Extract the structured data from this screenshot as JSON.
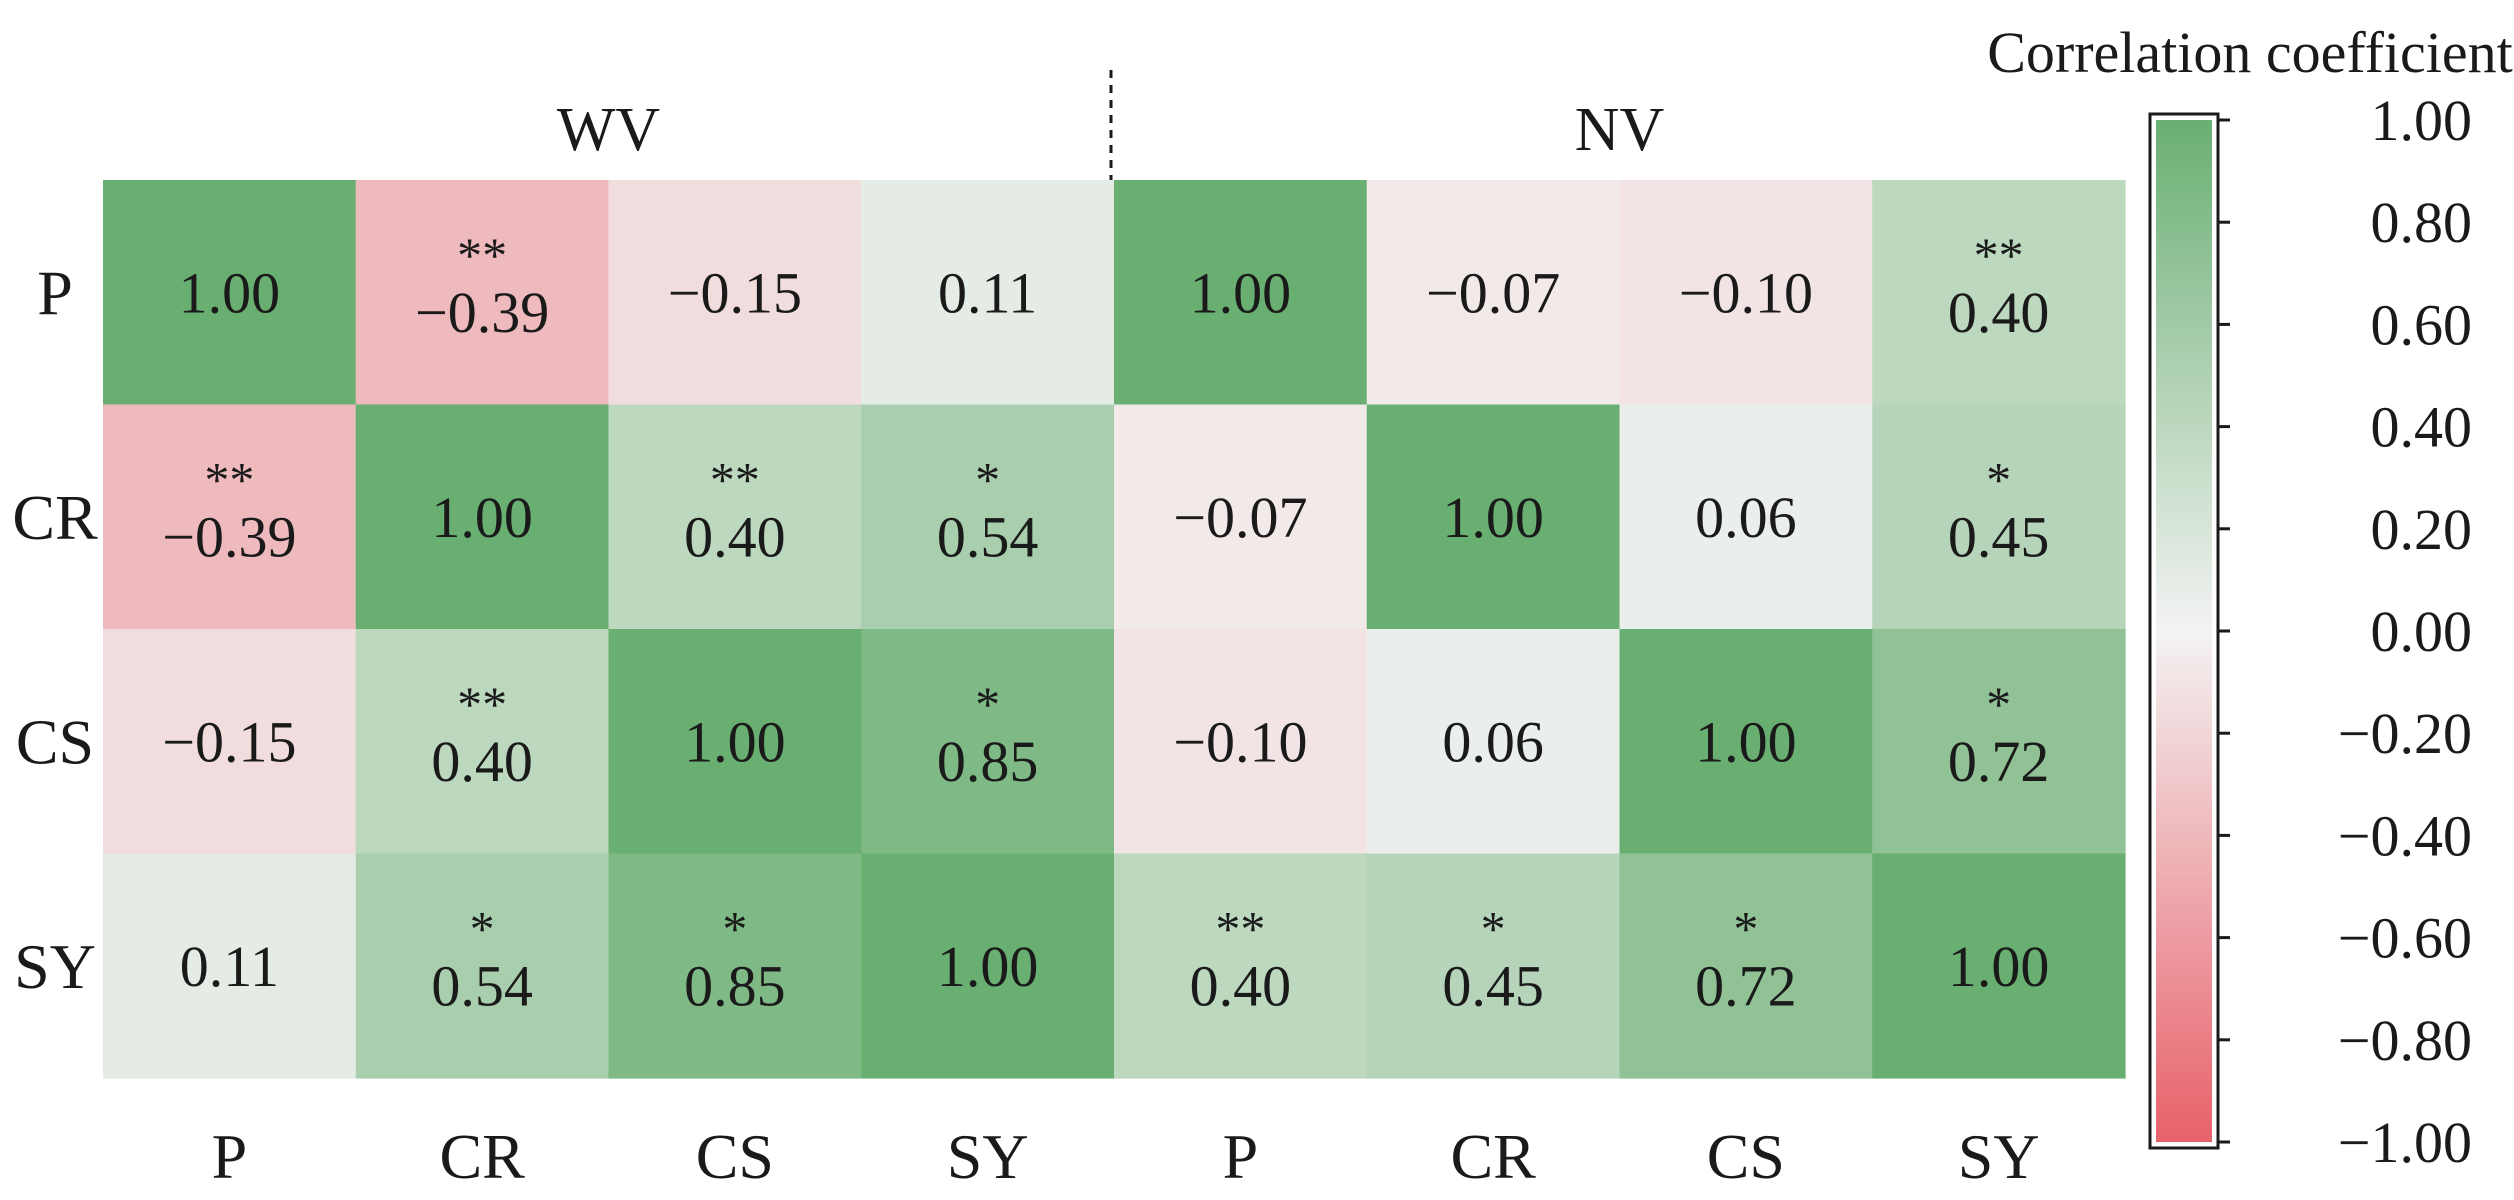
{
  "chart_data": {
    "type": "heatmap",
    "title": "",
    "groups": [
      "WV",
      "NV"
    ],
    "variables": [
      "P",
      "CR",
      "CS",
      "SY"
    ],
    "x_tick_labels": [
      "P",
      "CR",
      "CS",
      "SY",
      "P",
      "CR",
      "CS",
      "SY"
    ],
    "y_tick_labels": [
      "P",
      "CR",
      "CS",
      "SY"
    ],
    "matrices": [
      {
        "group": "WV",
        "values": [
          [
            1.0,
            -0.39,
            -0.15,
            0.11
          ],
          [
            -0.39,
            1.0,
            0.4,
            0.54
          ],
          [
            -0.15,
            0.4,
            1.0,
            0.85
          ],
          [
            0.11,
            0.54,
            0.85,
            1.0
          ]
        ],
        "significance": [
          [
            "",
            "**",
            "",
            ""
          ],
          [
            "**",
            "",
            "**",
            "*"
          ],
          [
            "",
            "**",
            "",
            "*"
          ],
          [
            "",
            "*",
            "*",
            ""
          ]
        ]
      },
      {
        "group": "NV",
        "values": [
          [
            1.0,
            -0.07,
            -0.1,
            0.4
          ],
          [
            -0.07,
            1.0,
            0.06,
            0.45
          ],
          [
            -0.1,
            0.06,
            1.0,
            0.72
          ],
          [
            0.4,
            0.45,
            0.72,
            1.0
          ]
        ],
        "significance": [
          [
            "",
            "",
            "",
            "**"
          ],
          [
            "",
            "",
            "",
            "*"
          ],
          [
            "",
            "",
            "",
            "*"
          ],
          [
            "**",
            "*",
            "*",
            ""
          ]
        ]
      }
    ],
    "colorbar": {
      "title": "Correlation coefficient",
      "range": [
        -1.0,
        1.0
      ],
      "ticks": [
        "1.00",
        "0.80",
        "0.60",
        "0.40",
        "0.20",
        "0.00",
        "−0.20",
        "−0.40",
        "−0.60",
        "−0.80",
        "−1.00"
      ],
      "tick_values": [
        1.0,
        0.8,
        0.6,
        0.4,
        0.2,
        0.0,
        -0.2,
        -0.4,
        -0.6,
        -0.8,
        -1.0
      ],
      "colors": {
        "positive": "#6aaf72",
        "neutral": "#f3f3f3",
        "negative": "#e8616a"
      }
    },
    "separator": "dashed-vertical-between-groups"
  }
}
